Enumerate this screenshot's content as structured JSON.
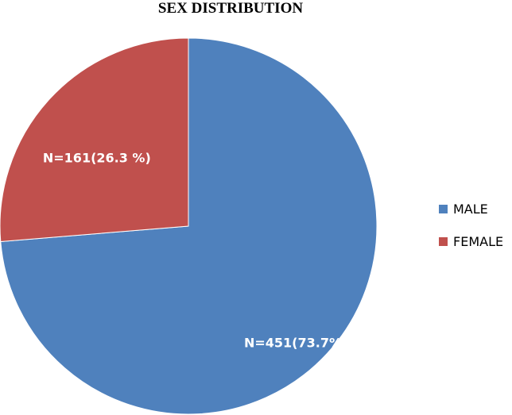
{
  "chart_data": {
    "type": "pie",
    "title": "SEX DISTRIBUTION",
    "slices": [
      {
        "name": "MALE",
        "value": 451,
        "percent": 73.7,
        "label": "N=451(73.7%)",
        "color": "#4F81BD"
      },
      {
        "name": "FEMALE",
        "value": 161,
        "percent": 26.3,
        "label": "N=161(26.3 %)",
        "color": "#C0504D"
      }
    ],
    "legend": {
      "position": "right",
      "entries": [
        "MALE",
        "FEMALE"
      ]
    }
  }
}
